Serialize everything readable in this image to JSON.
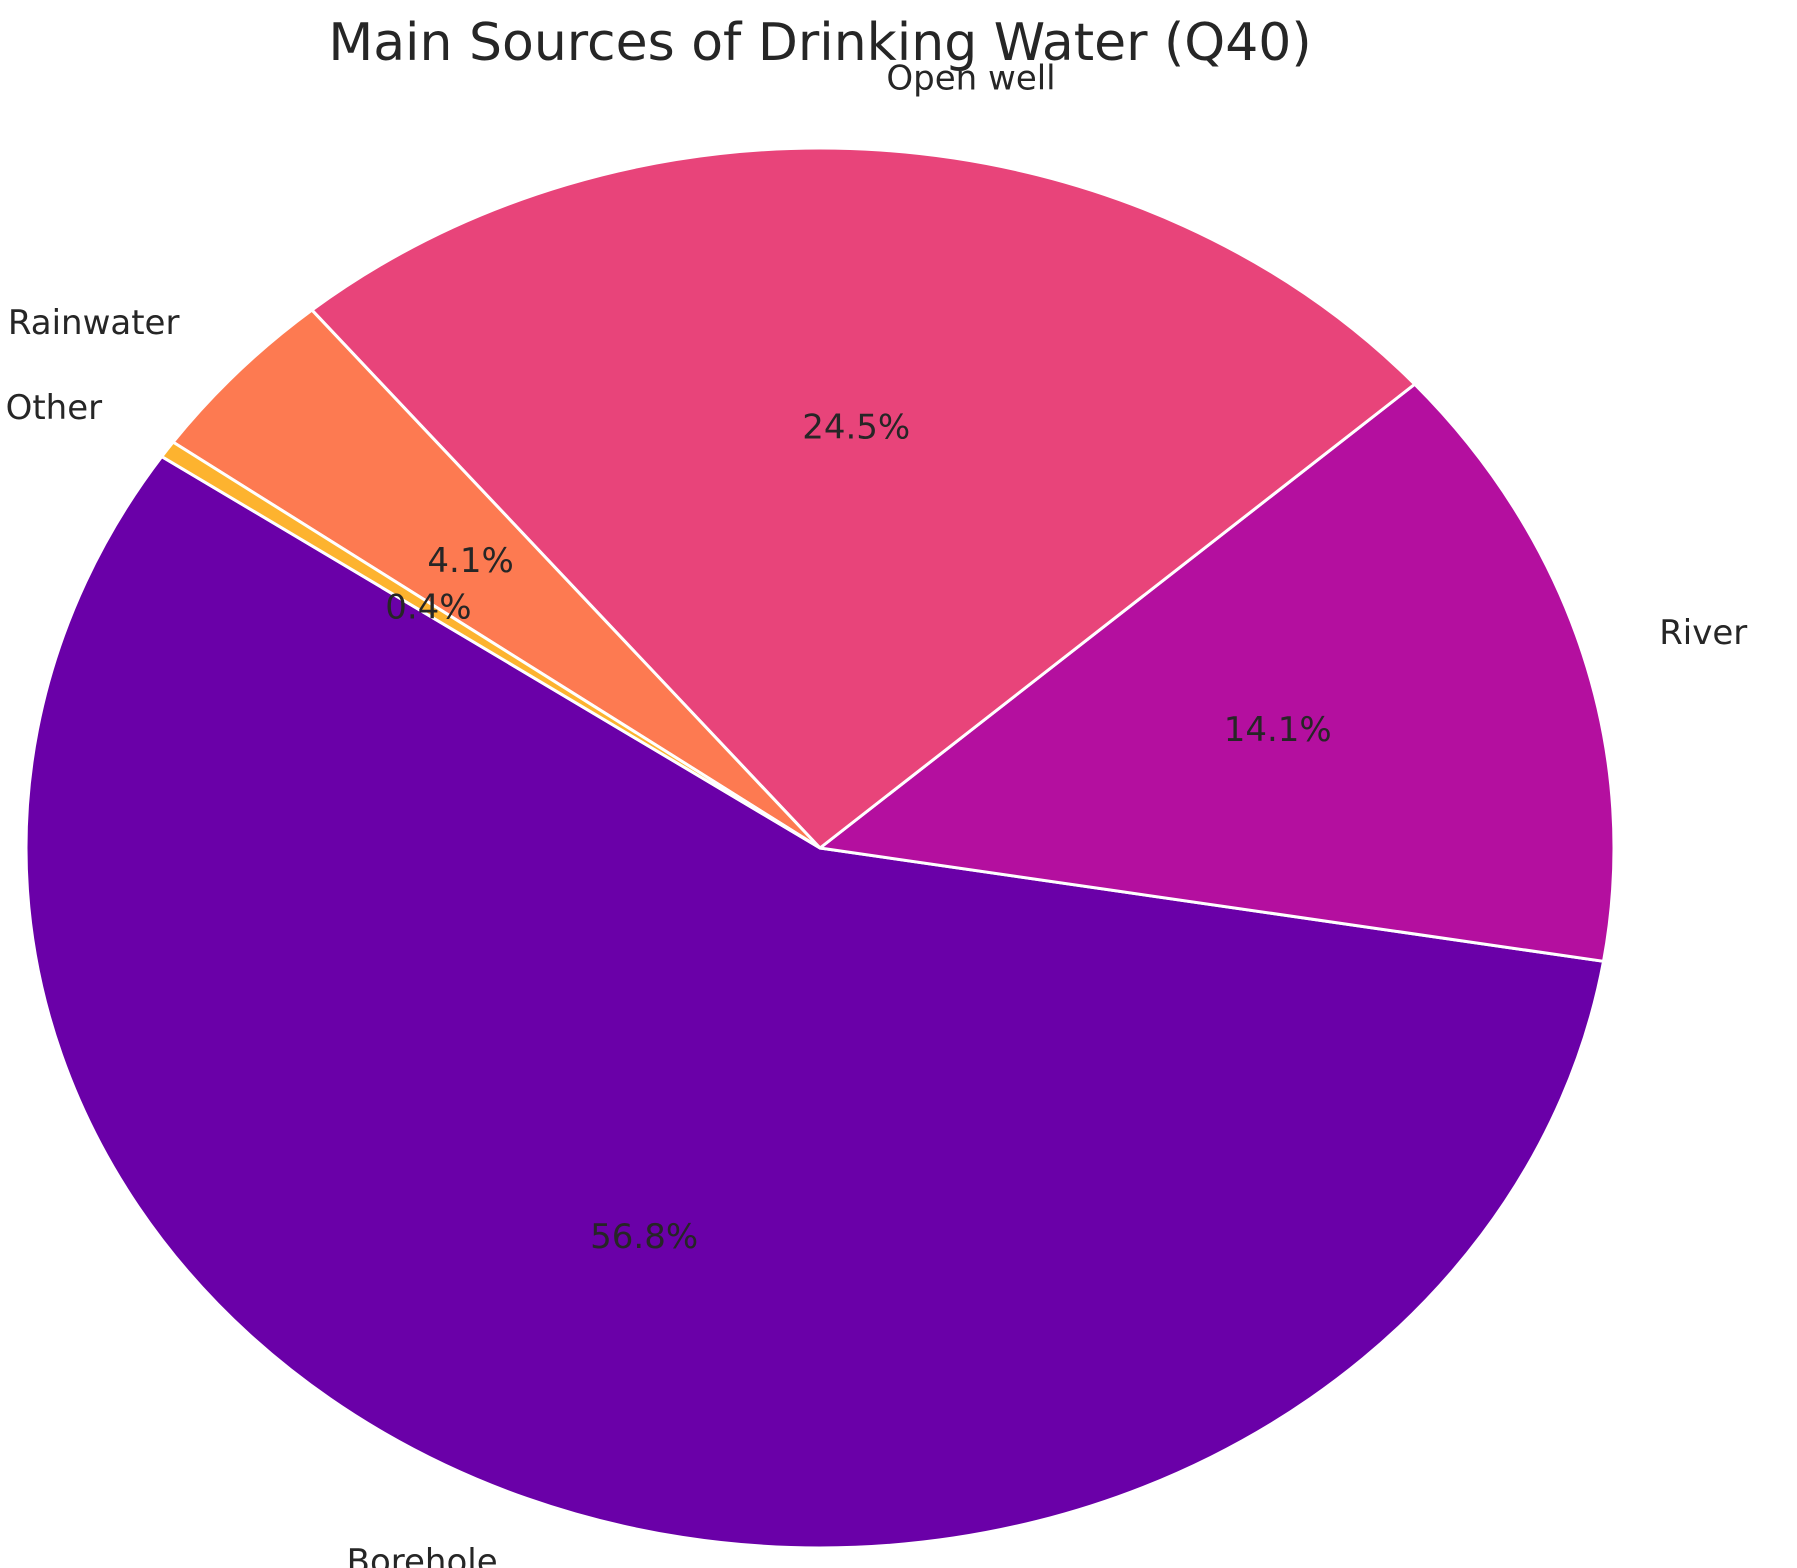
{
  "chart_data": {
    "type": "pie",
    "title": "Main Sources of Drinking Water (Q40)",
    "slices": [
      {
        "label": "Borehole",
        "value": 56.8,
        "pct_text": "56.8%",
        "color": "#6a00a8"
      },
      {
        "label": "River",
        "value": 14.1,
        "pct_text": "14.1%",
        "color": "#b40f9f"
      },
      {
        "label": "Open well",
        "value": 24.5,
        "pct_text": "24.5%",
        "color": "#e8447a"
      },
      {
        "label": "Rainwater",
        "value": 4.1,
        "pct_text": "4.1%",
        "color": "#fd7a51"
      },
      {
        "label": "Other",
        "value": 0.4,
        "pct_text": "0.4%",
        "color": "#fdb32f"
      }
    ],
    "start_angle_deg": 146,
    "direction": "counterclockwise",
    "slice_edge_color": "#ffffff"
  }
}
